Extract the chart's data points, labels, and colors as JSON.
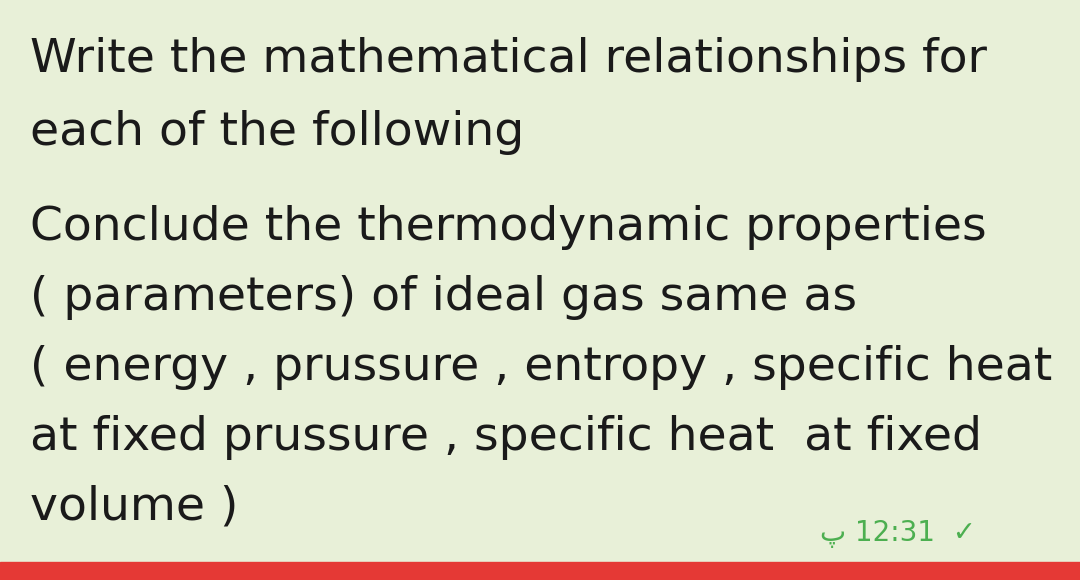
{
  "background_color": "#e8f0d8",
  "bubble_color": "#e8f0d8",
  "border_color": "#c8d8a8",
  "text_color": "#1a1a1a",
  "timestamp_color": "#4caf50",
  "bottom_bar_color": "#e53935",
  "line1": "Write the mathematical relationships for",
  "line2": "each of the following",
  "line4": "Conclude the thermodynamic properties",
  "line5": "( parameters) of ideal gas same as",
  "line6": "( energy , prussure , entropy , specific heat",
  "line7": "at fixed prussure , specific heat  at fixed",
  "line8": "volume )",
  "timestamp": "پ 12:31  ✓",
  "font_size": 34,
  "timestamp_font_size": 20
}
